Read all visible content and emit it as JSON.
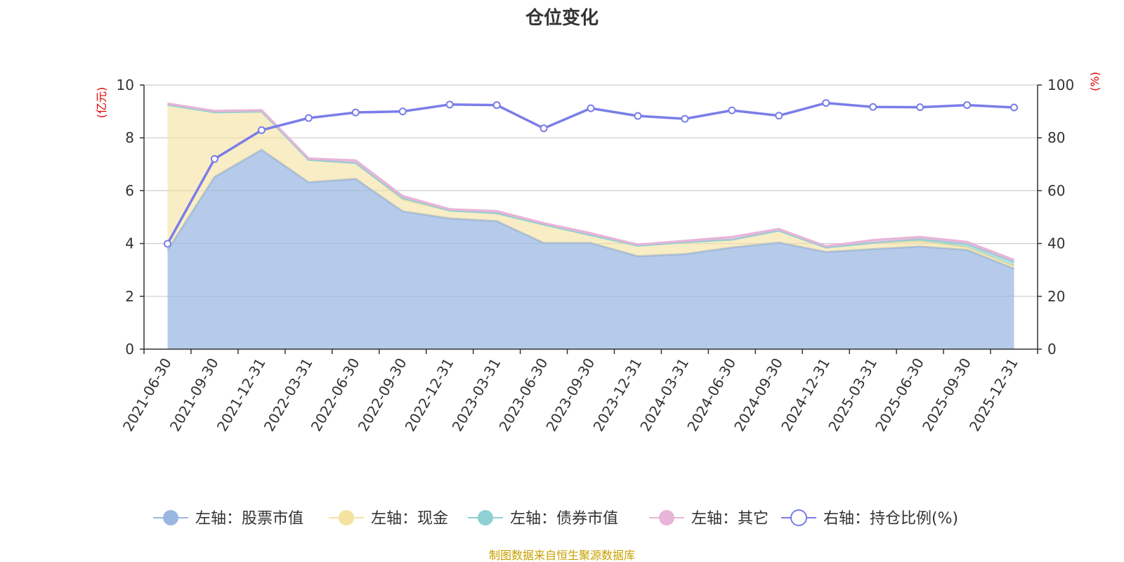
{
  "chart_data": {
    "type": "area",
    "title": "仓位变化",
    "source": "制图数据来自恒生聚源数据库",
    "left_axis": {
      "unit": "(亿元)",
      "ylim": [
        0,
        10
      ],
      "ticks": [
        "0",
        "2",
        "4",
        "6",
        "8",
        "10"
      ]
    },
    "right_axis": {
      "unit": "(%)",
      "ylim": [
        0,
        100
      ],
      "ticks": [
        "0",
        "20",
        "40",
        "60",
        "80",
        "100"
      ]
    },
    "categories": [
      "2021-06-30",
      "2021-09-30",
      "2021-12-31",
      "2022-03-31",
      "2022-06-30",
      "2022-09-30",
      "2022-12-31",
      "2023-03-31",
      "2023-06-30",
      "2023-09-30",
      "2023-12-31",
      "2024-03-31",
      "2024-06-30",
      "2024-09-30",
      "2024-12-31",
      "2025-03-31",
      "2025-06-30",
      "2025-09-30",
      "2025-12-31"
    ],
    "series": [
      {
        "name": "左轴：股票市值",
        "axis": "left",
        "type": "stacked-area",
        "color": "#9ab7e0",
        "values": [
          3.75,
          6.52,
          7.55,
          6.32,
          6.45,
          5.22,
          4.95,
          4.85,
          4.02,
          4.02,
          3.52,
          3.6,
          3.85,
          4.04,
          3.68,
          3.79,
          3.89,
          3.76,
          3.05
        ]
      },
      {
        "name": "左轴：现金",
        "axis": "left",
        "type": "stacked-area",
        "color": "#f5e1a0",
        "values": [
          5.5,
          2.45,
          1.45,
          0.85,
          0.6,
          0.45,
          0.3,
          0.3,
          0.7,
          0.3,
          0.4,
          0.45,
          0.3,
          0.45,
          0.17,
          0.24,
          0.2,
          0.1,
          0.1
        ]
      },
      {
        "name": "左轴：债券市值",
        "axis": "left",
        "type": "stacked-area",
        "color": "#8fd0d3",
        "values": [
          0,
          0,
          0,
          0,
          0,
          0.05,
          0,
          0,
          0,
          0,
          0,
          0,
          0,
          0,
          0,
          0,
          0.08,
          0.12,
          0.15
        ]
      },
      {
        "name": "左轴：其它",
        "axis": "left",
        "type": "stacked-area",
        "color": "#e8b4d8",
        "values": [
          0.05,
          0.05,
          0.05,
          0.05,
          0.1,
          0.08,
          0.05,
          0.08,
          0.05,
          0.07,
          0.04,
          0.05,
          0.1,
          0.06,
          0.05,
          0.1,
          0.08,
          0.08,
          0.08
        ]
      },
      {
        "name": "右轴：持仓比例(%)",
        "axis": "right",
        "type": "line",
        "color": "#7a7de8",
        "values": [
          39.9,
          72.0,
          82.9,
          87.5,
          89.6,
          90.0,
          92.6,
          92.4,
          83.6,
          91.2,
          88.3,
          87.2,
          90.4,
          88.4,
          93.2,
          91.7,
          91.6,
          92.4,
          91.5
        ]
      }
    ]
  },
  "colors": {
    "title": "#333333",
    "axis_unit": "#e00000",
    "source": "#c8a000",
    "grid": "#cccccc",
    "axis": "#333333"
  }
}
